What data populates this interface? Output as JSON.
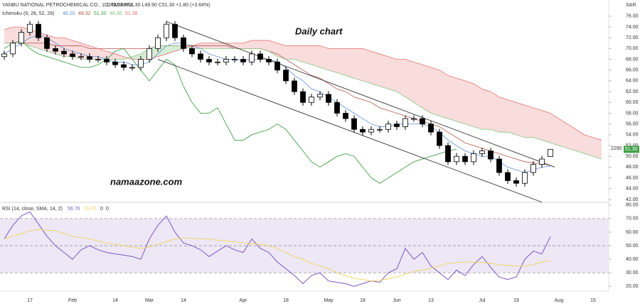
{
  "chart_data": [
    {
      "type": "candlestick",
      "title": "YANBU NATIONAL PETROCHEMICAL CO., 1D, TADAWUL",
      "ohlc_label": "O49.95 H51.30 L49.90 C51.30 +1.80 (+3.64%)",
      "indicator_title": "Ichimoku (9, 26, 52, 26)",
      "indicator_value_labels": [
        "48.20",
        "48.32",
        "51.30",
        "48.36",
        "51.38"
      ],
      "annotations": [
        "Daily chart",
        "namaazone.com"
      ],
      "y_axis_label": "SAR",
      "last_price_label": "51.30",
      "side_label": "2290",
      "categories": [
        null,
        null,
        null,
        "17",
        null,
        null,
        null,
        null,
        "Feb",
        null,
        null,
        null,
        null,
        "14",
        null,
        null,
        null,
        "Mar",
        null,
        null,
        null,
        "14",
        null,
        null,
        null,
        null,
        null,
        null,
        "Apr",
        null,
        null,
        null,
        null,
        "18",
        null,
        null,
        null,
        null,
        "May",
        null,
        null,
        null,
        "18",
        null,
        null,
        null,
        "Jun",
        null,
        null,
        null,
        "13",
        null,
        null,
        null,
        null,
        null,
        "Jul",
        null,
        null,
        null,
        "19",
        null,
        null,
        null,
        null,
        "Aug",
        null,
        null,
        null,
        "15",
        null
      ],
      "open": [
        68.5,
        69,
        71,
        73,
        74.5,
        72,
        70,
        69.5,
        69,
        68.5,
        68.5,
        68,
        68,
        67.5,
        67,
        66.5,
        66.5,
        68,
        70,
        72,
        74.5,
        72,
        70,
        69,
        68,
        67.5,
        67.5,
        68,
        68,
        67.5,
        69,
        68,
        67.5,
        66,
        64,
        62,
        60,
        61,
        61.5,
        60,
        58,
        57,
        55,
        54.5,
        55,
        55,
        56,
        55.5,
        57,
        57,
        56,
        54.5,
        52,
        49,
        50,
        49,
        50.5,
        51,
        49.5,
        47,
        45.5,
        45,
        47,
        48.5,
        49.95,
        null,
        null,
        null,
        null,
        null,
        null
      ],
      "high": [
        69.6,
        71.6,
        73.6,
        75.1,
        75.1,
        72.6,
        70.6,
        70.1,
        69.6,
        69.1,
        69.1,
        68.6,
        68.6,
        68.1,
        67.6,
        67.1,
        68.6,
        70.6,
        72.6,
        75.1,
        75.1,
        72.6,
        70.6,
        69.6,
        68.6,
        68.1,
        68.6,
        68.6,
        68.6,
        69.6,
        69.6,
        68.6,
        68.1,
        66.6,
        64.6,
        62.6,
        61.6,
        62.1,
        62.1,
        60.6,
        58.6,
        57.6,
        55.6,
        55.6,
        55.6,
        56.6,
        56.6,
        57.6,
        57.6,
        57.6,
        56.6,
        55.1,
        52.6,
        50.6,
        50.6,
        51.1,
        51.6,
        51.6,
        50.1,
        47.6,
        46.1,
        47.6,
        49.1,
        50.1,
        51.3,
        null,
        null,
        null,
        null,
        null,
        null
      ],
      "low": [
        67.9,
        68.4,
        70.4,
        72.4,
        71.4,
        69.4,
        68.9,
        68.4,
        67.9,
        67.9,
        67.4,
        67.4,
        66.9,
        66.4,
        65.9,
        65.9,
        65.9,
        67.4,
        69.4,
        71.4,
        71.4,
        69.4,
        68.4,
        67.4,
        66.9,
        66.9,
        66.9,
        67.4,
        66.9,
        66.9,
        67.4,
        66.9,
        65.4,
        63.4,
        61.4,
        59.4,
        59.4,
        60.4,
        59.4,
        57.4,
        56.4,
        54.4,
        53.9,
        53.9,
        54.4,
        54.4,
        54.9,
        54.9,
        56.4,
        55.4,
        53.9,
        51.4,
        48.4,
        48.4,
        48.4,
        48.4,
        49.9,
        48.9,
        46.4,
        44.9,
        44.4,
        44.4,
        46.4,
        47.9,
        49.9,
        null,
        null,
        null,
        null,
        null,
        null
      ],
      "close": [
        69,
        71,
        73,
        74.5,
        72,
        70,
        69.5,
        69,
        68.5,
        68.5,
        68,
        68,
        67.5,
        67,
        66.5,
        66.5,
        68,
        70,
        72,
        74.5,
        72,
        70,
        69,
        68,
        67.5,
        67.5,
        68,
        68,
        67.5,
        69,
        68,
        67.5,
        66,
        64,
        62,
        60,
        61,
        61.5,
        60,
        58,
        57,
        55,
        54.5,
        55,
        55,
        56,
        55.5,
        57,
        57,
        56,
        54.5,
        52,
        49,
        50,
        49,
        50.5,
        51,
        49.5,
        47,
        45.5,
        45,
        47,
        48.5,
        49.5,
        51.3,
        null,
        null,
        null,
        null,
        null,
        null
      ],
      "up_color": "#ffffff",
      "down_color": "#000000",
      "wick_color": "#000000",
      "series": [
        {
          "color": "#5b8fd9",
          "values": [
            69,
            70,
            71,
            72,
            72.5,
            72,
            71,
            70,
            69.5,
            69,
            68.5,
            68.5,
            68,
            67.5,
            67.5,
            67,
            67,
            67.5,
            69,
            70.5,
            71,
            71,
            70.5,
            70,
            69,
            68.5,
            68,
            68,
            67.8,
            68,
            68,
            68,
            67.5,
            66.5,
            65,
            64,
            62.5,
            62,
            61,
            60,
            59,
            58,
            57,
            56,
            55.5,
            55.5,
            56,
            56,
            56,
            56,
            55.5,
            54.5,
            53,
            52,
            51,
            50.5,
            50,
            50,
            49,
            48,
            47.5,
            47,
            47.5,
            48,
            48.2,
            null,
            null,
            null,
            null,
            null,
            null
          ]
        },
        {
          "color": "#b5564e",
          "values": [
            71,
            71,
            71,
            71,
            71,
            71,
            70.5,
            70.5,
            70.5,
            70.5,
            70,
            70,
            70,
            70,
            70,
            70,
            70,
            70,
            70.5,
            70.5,
            70.5,
            70.5,
            70.5,
            70.5,
            70.5,
            70.5,
            70.5,
            70,
            70,
            70,
            70,
            69.5,
            69,
            68,
            67,
            66,
            65,
            64.5,
            63.5,
            62.5,
            62,
            61,
            60.5,
            60,
            59,
            58.5,
            58,
            57.5,
            57,
            56.5,
            56,
            55.5,
            54.5,
            53.5,
            52.5,
            52,
            51.5,
            51,
            50.5,
            50,
            49.5,
            49,
            48.8,
            48.6,
            48.32,
            null,
            null,
            null,
            null,
            null,
            null
          ]
        },
        {
          "color": "#43a047",
          "values": [
            70,
            71,
            71.5,
            70,
            69,
            68.5,
            68,
            67.5,
            67,
            66.5,
            66.5,
            67,
            68,
            69.5,
            70,
            68,
            66,
            64,
            66,
            68,
            67,
            63,
            60,
            58,
            58,
            59,
            56,
            53,
            53,
            54,
            54.5,
            55,
            56,
            55,
            53,
            51,
            49,
            48,
            49,
            50,
            50.5,
            50,
            48,
            46,
            45,
            46,
            47,
            48,
            49,
            49.5,
            50,
            50.5,
            51,
            51.3,
            null,
            null,
            null,
            null,
            null,
            null,
            null,
            null,
            null,
            null,
            null,
            null,
            null,
            null,
            null,
            null,
            null
          ]
        },
        {
          "color": "#81c784",
          "values": [
            71,
            71,
            71,
            70.5,
            70,
            69.5,
            69,
            68.5,
            68.5,
            68,
            68,
            68,
            68,
            68,
            68,
            68.5,
            69,
            70,
            70.5,
            70.5,
            70.5,
            70.5,
            70,
            70,
            70,
            70,
            70,
            70,
            70,
            70,
            70,
            69.5,
            68.5,
            68,
            68,
            67.5,
            67,
            66.5,
            66,
            65.5,
            65,
            64.5,
            64,
            63.5,
            63,
            62.5,
            62,
            61,
            60,
            59,
            58,
            57.5,
            57,
            56.5,
            56,
            55.5,
            55,
            55,
            54.5,
            54.5,
            54,
            53.5,
            53.5,
            53,
            52.5,
            52,
            51.5,
            51,
            50.5,
            50,
            49.5
          ]
        },
        {
          "color": "#e57373",
          "values": [
            73.5,
            74,
            74,
            73.5,
            73,
            72.5,
            72,
            72,
            71.5,
            71,
            70.5,
            70,
            69.5,
            69,
            68.5,
            68,
            68,
            68,
            68.5,
            69,
            69.5,
            70,
            70.5,
            71,
            71,
            71,
            71,
            71,
            71,
            71.5,
            71.5,
            71.5,
            71,
            70.5,
            70.5,
            70.5,
            70.5,
            70.5,
            70,
            70,
            70,
            70,
            70,
            69.5,
            69,
            68.5,
            68,
            68,
            67.5,
            67,
            66.5,
            66,
            65,
            64.5,
            64,
            63.5,
            62.5,
            62,
            61,
            60.5,
            60,
            59.5,
            59,
            58.5,
            58,
            57,
            56,
            55,
            54,
            53.5,
            53
          ]
        }
      ],
      "cloud_colors": [
        "#d7ecd5",
        "#f9dcdc"
      ],
      "trendlines": [
        {
          "x": [
            19,
            64.5
          ],
          "y": [
            75,
            48
          ]
        },
        {
          "x": [
            18,
            63
          ],
          "y": [
            68,
            41.5
          ]
        }
      ],
      "ylim": [
        41.6,
        79
      ],
      "yticks": [
        {
          "value": 42,
          "label": "42.00"
        },
        {
          "value": 44,
          "label": "44.00"
        },
        {
          "value": 46,
          "label": "46.00"
        },
        {
          "value": 48,
          "label": "48.00"
        },
        {
          "value": 50,
          "label": "50.00"
        },
        {
          "value": 52,
          "label": "52.00"
        },
        {
          "value": 54,
          "label": "54.00"
        },
        {
          "value": 56,
          "label": "56.00"
        },
        {
          "value": 58,
          "label": "58.00"
        },
        {
          "value": 60,
          "label": "60.00"
        },
        {
          "value": 62,
          "label": "62.00"
        },
        {
          "value": 64,
          "label": "64.00"
        },
        {
          "value": 66,
          "label": "66.00"
        },
        {
          "value": 68,
          "label": "68.00"
        },
        {
          "value": 70,
          "label": "70.00"
        },
        {
          "value": 72,
          "label": "72.00"
        },
        {
          "value": 74,
          "label": "74.00"
        },
        {
          "value": 76,
          "label": "76.00"
        }
      ]
    },
    {
      "type": "line",
      "title": "RSI (14, close, SMA, 14, 2)",
      "value_labels": [
        "56.76",
        "39.05",
        "0",
        "0"
      ],
      "series": [
        {
          "color": "#7e57c2",
          "values": [
            55,
            65,
            72,
            75,
            66,
            57,
            50,
            45,
            40,
            47,
            50,
            47,
            45,
            44,
            43,
            42,
            40,
            55,
            65,
            72,
            60,
            52,
            50,
            47,
            42,
            46,
            50,
            47,
            45,
            55,
            48,
            45,
            38,
            33,
            28,
            22,
            28,
            30,
            24,
            23,
            22,
            20,
            22,
            24,
            23,
            30,
            33,
            48,
            40,
            45,
            35,
            30,
            25,
            32,
            28,
            36,
            42,
            34,
            27,
            25,
            27,
            40,
            46,
            44,
            56.76
          ]
        },
        {
          "color": "#f2d56b",
          "values": [
            55,
            57,
            59,
            61,
            62,
            61.5,
            61,
            59,
            57,
            56,
            55,
            53.5,
            52,
            51,
            50,
            49,
            48,
            49,
            51,
            53,
            55,
            55.5,
            55.5,
            55,
            55,
            54,
            53.5,
            53,
            52,
            51.5,
            51,
            50,
            48,
            45,
            42,
            40,
            37,
            35,
            33,
            30,
            28,
            26,
            25,
            24,
            24.5,
            25.5,
            27,
            29,
            31,
            32,
            33,
            35,
            37,
            37.5,
            38,
            38,
            37.5,
            37,
            36,
            35.5,
            35,
            35,
            36,
            38,
            39.05
          ]
        }
      ],
      "band": [
        30,
        70
      ],
      "band_color": "#ede7f6",
      "midline": 50,
      "ylim": [
        16.5,
        82
      ],
      "yticks": [
        {
          "value": 20,
          "label": "20.00"
        },
        {
          "value": 30,
          "label": "30.00"
        },
        {
          "value": 40,
          "label": "40.00"
        },
        {
          "value": 50,
          "label": "50.00"
        },
        {
          "value": 60,
          "label": "60.00"
        },
        {
          "value": 70,
          "label": "70.00"
        },
        {
          "value": 80,
          "label": "80.00"
        }
      ]
    }
  ]
}
